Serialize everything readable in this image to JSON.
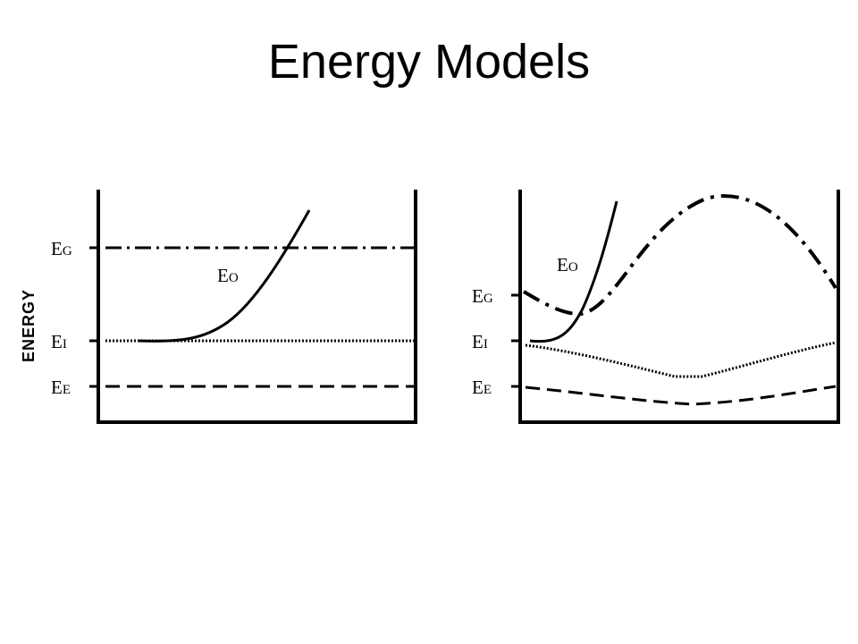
{
  "title": "Energy Models",
  "y_axis_label": "ENERGY",
  "left_panel": {
    "labels": {
      "eg": {
        "main": "E",
        "sub": "G"
      },
      "ei": {
        "main": "E",
        "sub": "I"
      },
      "ee": {
        "main": "E",
        "sub": "E"
      },
      "eo": {
        "main": "E",
        "sub": "O"
      }
    }
  },
  "right_panel": {
    "labels": {
      "eg": {
        "main": "E",
        "sub": "G"
      },
      "ei": {
        "main": "E",
        "sub": "I"
      },
      "ee": {
        "main": "E",
        "sub": "E"
      },
      "eo": {
        "main": "E",
        "sub": "O"
      }
    }
  }
}
